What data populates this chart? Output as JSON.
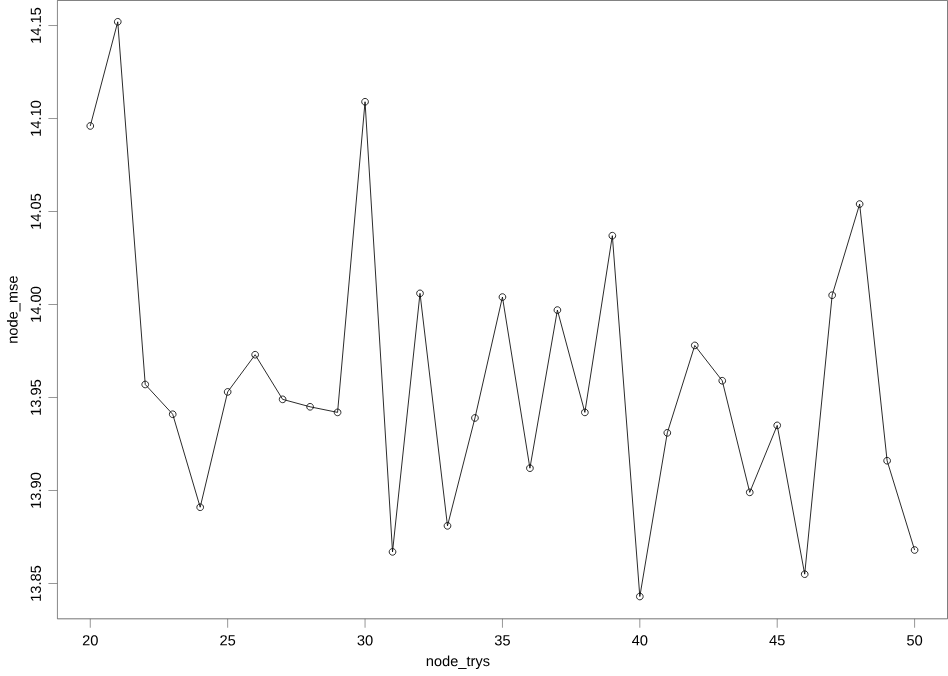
{
  "chart_data": {
    "type": "line",
    "xlabel": "node_trys",
    "ylabel": "node_mse",
    "x": [
      20,
      21,
      22,
      23,
      24,
      25,
      26,
      27,
      28,
      29,
      30,
      31,
      32,
      33,
      34,
      35,
      36,
      37,
      38,
      39,
      40,
      41,
      42,
      43,
      44,
      45,
      46,
      47,
      48,
      49,
      50
    ],
    "values": [
      14.096,
      14.152,
      13.957,
      13.941,
      13.891,
      13.953,
      13.973,
      13.949,
      13.945,
      13.942,
      14.109,
      13.867,
      14.006,
      13.881,
      13.939,
      14.004,
      13.912,
      13.997,
      13.942,
      14.037,
      13.843,
      13.931,
      13.978,
      13.959,
      13.899,
      13.935,
      13.855,
      14.005,
      14.054,
      13.916,
      13.868
    ],
    "color": "#000000",
    "marker": "circle",
    "line_style": "solid",
    "grid": false,
    "xlim": [
      18.8,
      51.2
    ],
    "ylim": [
      13.831,
      14.1635
    ],
    "xticks": [
      20,
      25,
      30,
      35,
      40,
      45,
      50
    ],
    "yticks": [
      13.85,
      {
        "value": 13.9,
        "label": "13.90"
      },
      13.95,
      {
        "value": 14.0,
        "label": "14.00"
      },
      14.05,
      {
        "value": 14.1,
        "label": "14.10"
      },
      14.15
    ]
  }
}
